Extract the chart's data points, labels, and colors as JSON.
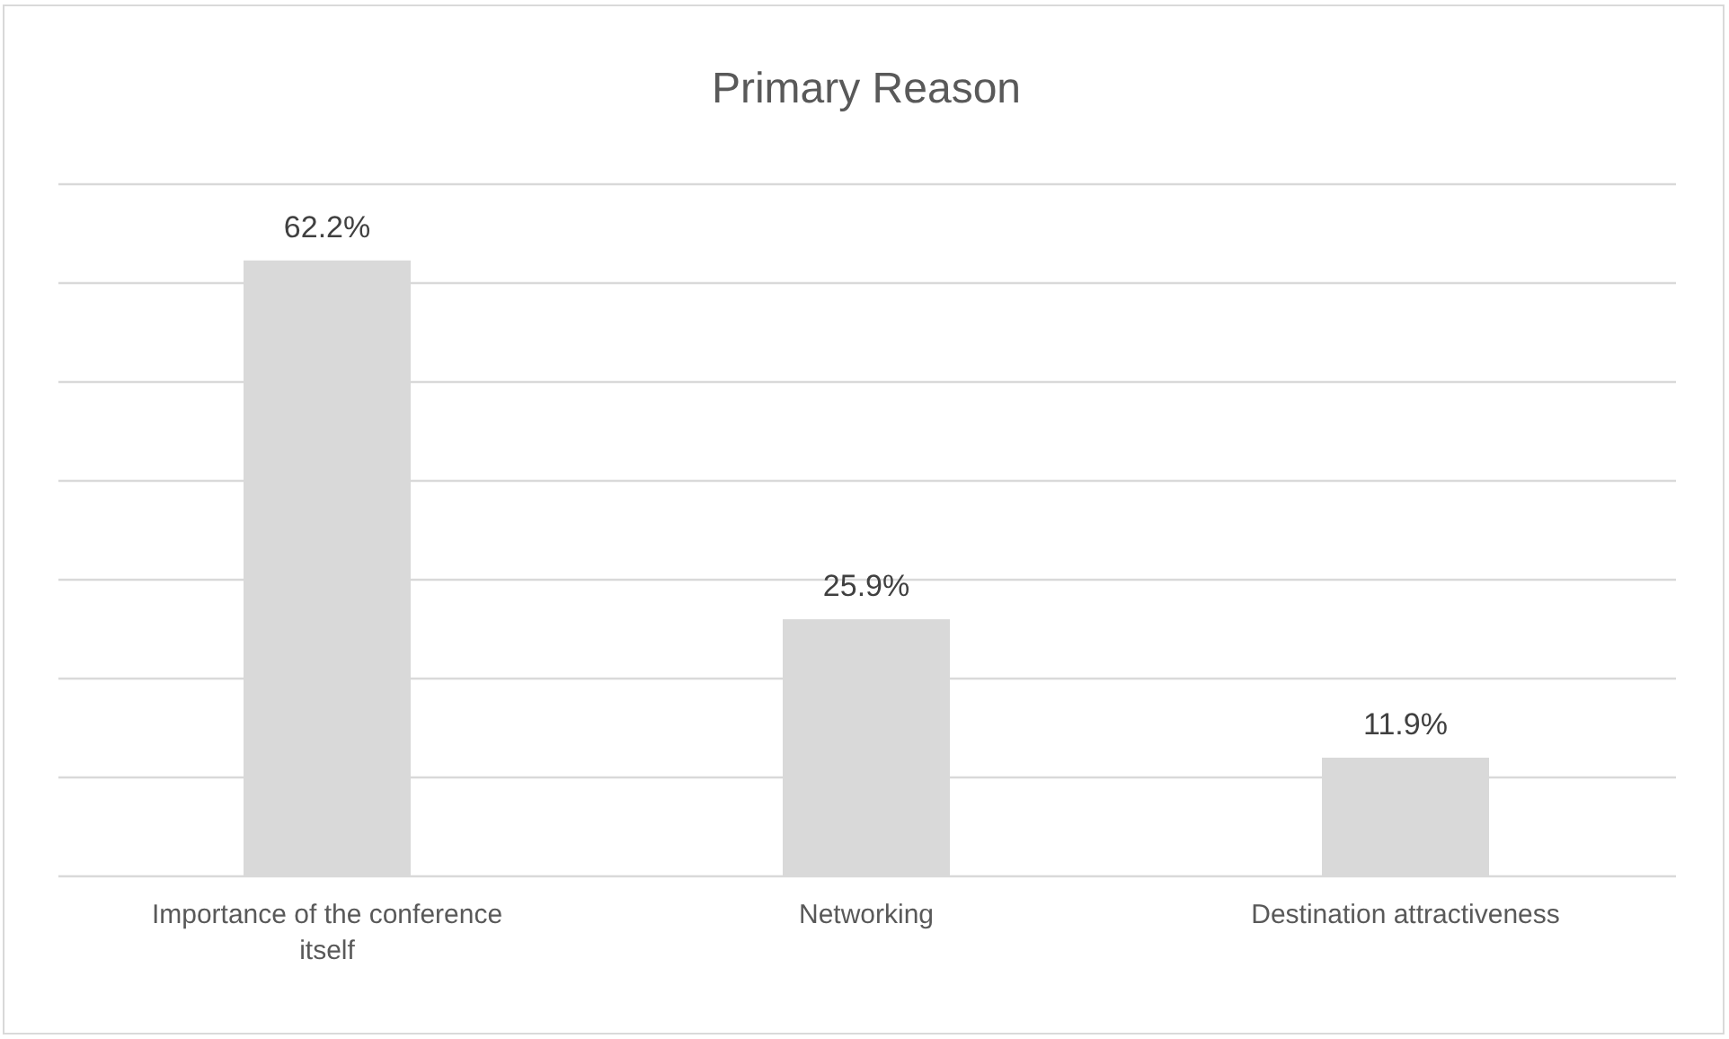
{
  "chart_data": {
    "type": "bar",
    "title": "Primary Reason",
    "categories": [
      "Importance of the conference itself",
      "Networking",
      "Destination attractiveness"
    ],
    "values": [
      62.2,
      25.9,
      11.9
    ],
    "color": "#d9d9d9",
    "value_labels": [
      "62.2%",
      "25.9%",
      "11.9%"
    ],
    "ylim": [
      0,
      70
    ],
    "yticks": [
      {
        "value": 0,
        "label": null
      },
      {
        "value": 10,
        "label": null
      },
      {
        "value": 20,
        "label": null
      },
      {
        "value": 30,
        "label": null
      },
      {
        "value": 40,
        "label": null
      },
      {
        "value": 50,
        "label": null
      },
      {
        "value": 60,
        "label": null
      },
      {
        "value": 70,
        "label": null
      }
    ],
    "grid": "y",
    "tick_labels": "x"
  }
}
